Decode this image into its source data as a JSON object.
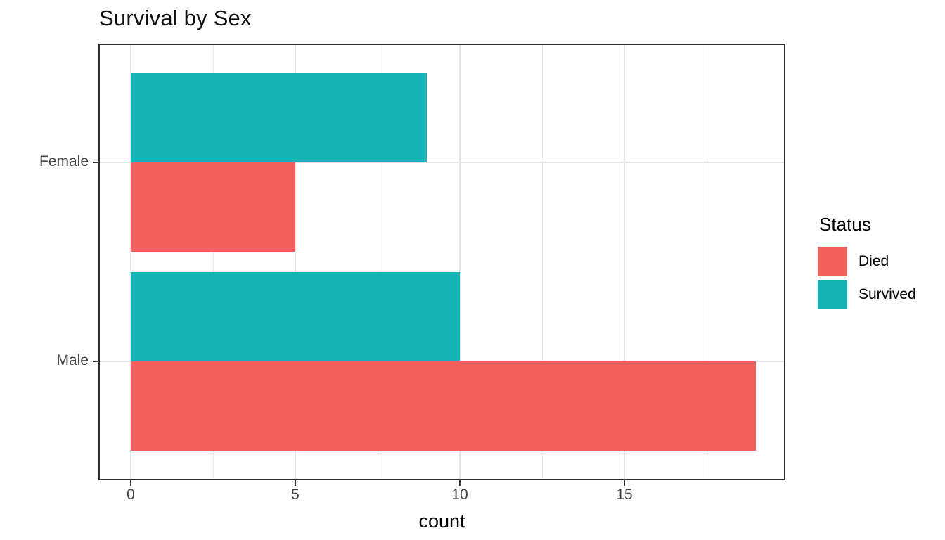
{
  "chart_data": {
    "type": "bar",
    "orientation": "horizontal",
    "title": "Survival by Sex",
    "xlabel": "count",
    "ylabel": "",
    "categories": [
      "Female",
      "Male"
    ],
    "series": [
      {
        "name": "Died",
        "color": "#F2605D",
        "values": [
          5,
          19
        ]
      },
      {
        "name": "Survived",
        "color": "#16B3B6",
        "values": [
          9,
          10
        ]
      }
    ],
    "x_ticks": [
      0,
      5,
      10,
      15
    ],
    "x_minor_gridlines": [
      2.5,
      7.5,
      12.5,
      17.5
    ],
    "xlim": [
      -0.95,
      19.95
    ],
    "grid": true,
    "legend": {
      "title": "Status",
      "position": "right"
    },
    "colors": {
      "grid_major": "#E3E3E3",
      "grid_minor": "#ECECEC",
      "panel_border": "#2E2E2E",
      "axis_text": "#444444",
      "text": "#000000",
      "background": "#FFFFFF"
    }
  }
}
